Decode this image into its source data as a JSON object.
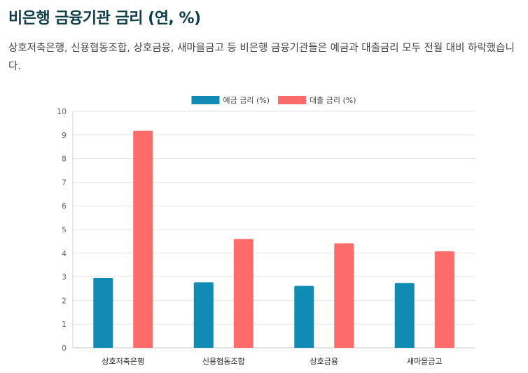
{
  "page": {
    "title": "비은행 금융기관 금리 (연, %)",
    "description": "상호저축은행, 신용협동조합, 상호금융, 새마을금고 등 비은행 금융기관들은 예금과 대출금리 모두 전월 대비 하락했습니다."
  },
  "chart_data": {
    "type": "bar",
    "title": "",
    "xlabel": "",
    "ylabel": "",
    "ylim": [
      0,
      10
    ],
    "yticks": [
      "0",
      "1",
      "2",
      "3",
      "4",
      "5",
      "6",
      "7",
      "8",
      "9",
      "10"
    ],
    "categories": [
      "상호저축은행",
      "신용협동조합",
      "상호금융",
      "새마을금고"
    ],
    "legend_position": "top",
    "series": [
      {
        "name": "예금 금리 (%)",
        "color": "#128bb4",
        "values": [
          2.96,
          2.77,
          2.62,
          2.74
        ]
      },
      {
        "name": "대출 금리 (%)",
        "color": "#ff6b6b",
        "values": [
          9.18,
          4.6,
          4.42,
          4.08
        ]
      }
    ]
  }
}
